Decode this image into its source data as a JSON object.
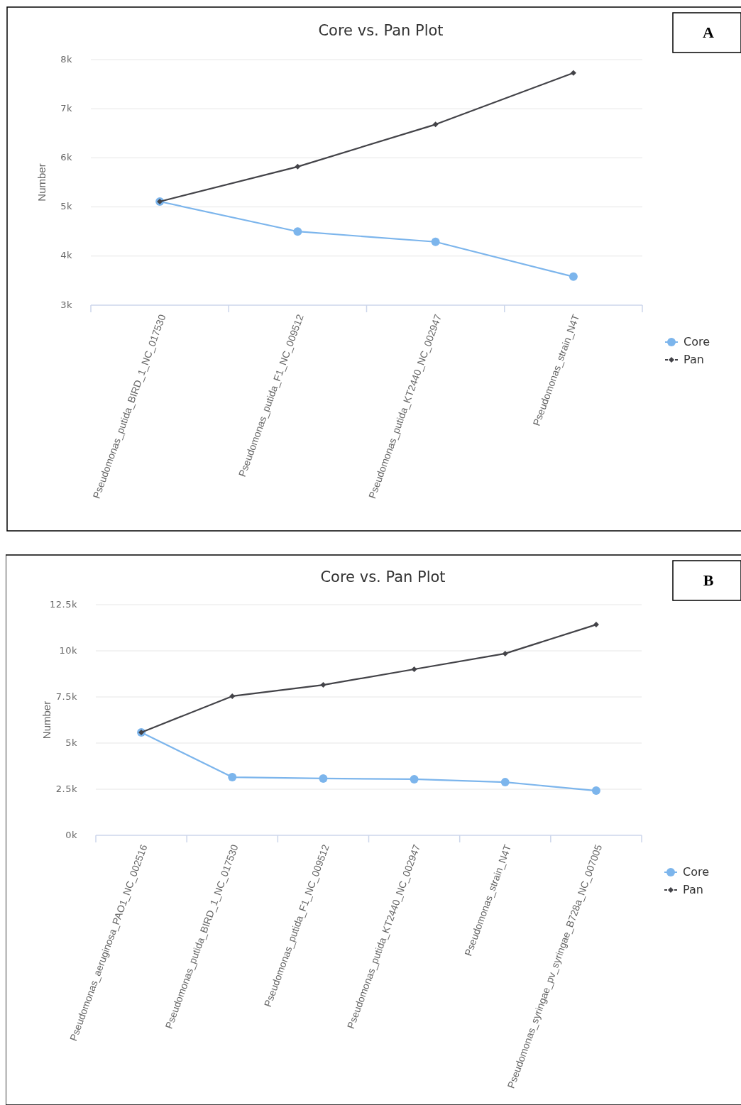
{
  "chart_data": [
    {
      "type": "line",
      "title": "Core vs. Pan Plot",
      "ylabel": "Number",
      "annotations": [
        "A"
      ],
      "categories": [
        "Pseudomonas_putida_BIRD_1_NC_017530",
        "Pseudomonas_putida_F1_NC_009512",
        "Pseudomonas_putida_KT2440_NC_002947",
        "Pseudomonas_strain_N4T"
      ],
      "series": [
        {
          "name": "Core",
          "color": "#7cb5ec",
          "marker": "circle",
          "values": [
            5110,
            4500,
            4290,
            3580
          ]
        },
        {
          "name": "Pan",
          "color": "#434348",
          "marker": "diamond",
          "values": [
            5110,
            5820,
            6680,
            7730
          ]
        }
      ],
      "ylim": [
        3000,
        8000
      ],
      "yticks": [
        {
          "value": 3000,
          "label": "3k"
        },
        {
          "value": 4000,
          "label": "4k"
        },
        {
          "value": 5000,
          "label": "5k"
        },
        {
          "value": 6000,
          "label": "6k"
        },
        {
          "value": 7000,
          "label": "7k"
        },
        {
          "value": 8000,
          "label": "8k"
        }
      ],
      "grid": "y",
      "legend": "right"
    },
    {
      "type": "line",
      "title": "Core vs. Pan Plot",
      "ylabel": "Number",
      "annotations": [
        "B"
      ],
      "categories": [
        "Pseudomonas_aeruginosa_PAO1_NC_002516",
        "Pseudomonas_putida_BIRD_1_NC_017530",
        "Pseudomonas_putida_F1_NC_009512",
        "Pseudomonas_putida_KT2440_NC_002947",
        "Pseudomonas_strain_N4T",
        "Pseudomonas_syringae_pv_syringae_B728a_NC_007005"
      ],
      "series": [
        {
          "name": "Core",
          "color": "#7cb5ec",
          "marker": "circle",
          "values": [
            5580,
            3150,
            3080,
            3040,
            2880,
            2420
          ]
        },
        {
          "name": "Pan",
          "color": "#434348",
          "marker": "diamond",
          "values": [
            5580,
            7540,
            8150,
            9000,
            9850,
            11420
          ]
        }
      ],
      "ylim": [
        0,
        12500
      ],
      "yticks": [
        {
          "value": 0,
          "label": "0k"
        },
        {
          "value": 2500,
          "label": "2.5k"
        },
        {
          "value": 5000,
          "label": "5k"
        },
        {
          "value": 7500,
          "label": "7.5k"
        },
        {
          "value": 10000,
          "label": "10k"
        },
        {
          "value": 12500,
          "label": "12.5k"
        }
      ],
      "grid": "y",
      "legend": "right"
    }
  ]
}
